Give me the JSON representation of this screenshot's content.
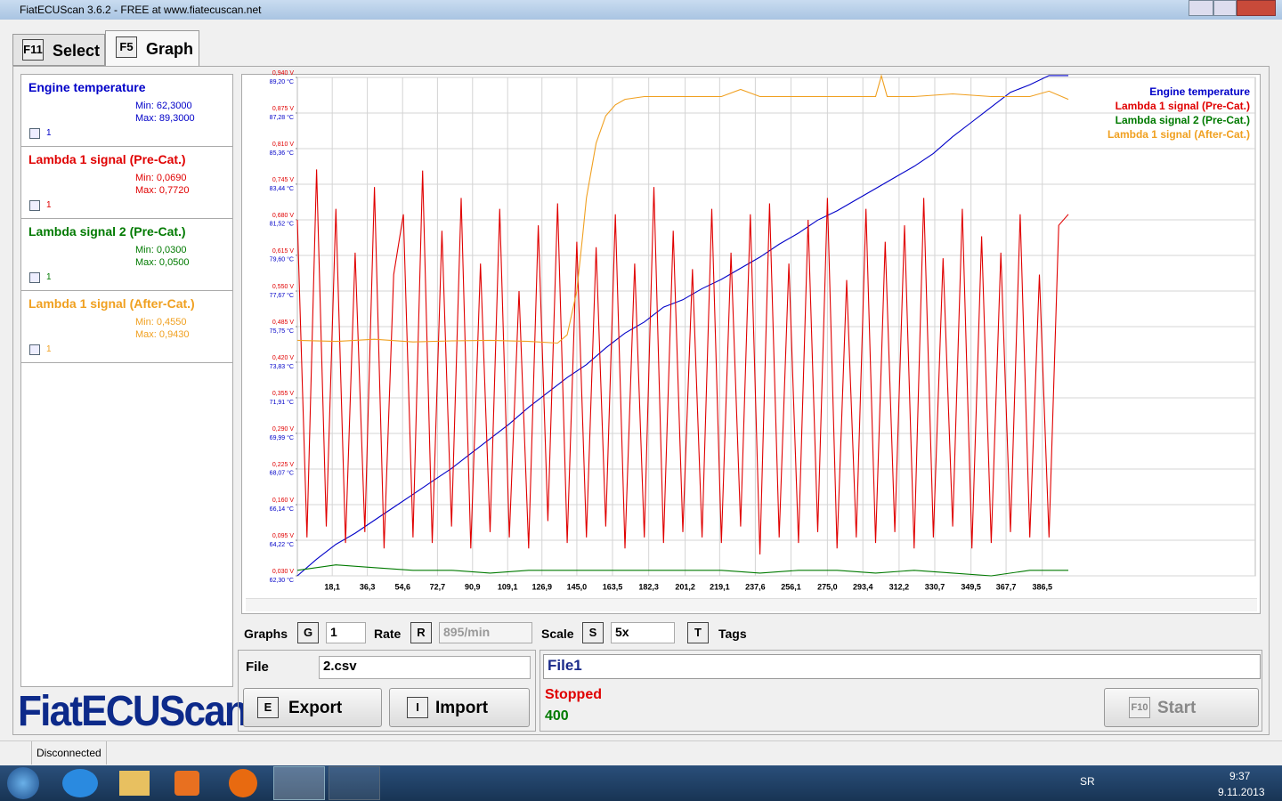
{
  "window": {
    "title": "FiatECUScan 3.6.2 - FREE at www.fiatecuscan.net"
  },
  "tabs": [
    {
      "key": "F11",
      "label": "Select"
    },
    {
      "key": "F5",
      "label": "Graph"
    }
  ],
  "left_panel": [
    {
      "name": "Engine temperature",
      "min": "Min: 62,3000",
      "max": "Max: 89,3000",
      "check": "1",
      "color": "#0000c8"
    },
    {
      "name": "Lambda 1 signal (Pre-Cat.)",
      "min": "Min: 0,0690",
      "max": "Max: 0,7720",
      "check": "1",
      "color": "#e00000"
    },
    {
      "name": "Lambda signal 2 (Pre-Cat.)",
      "min": "Min: 0,0300",
      "max": "Max: 0,0500",
      "check": "1",
      "color": "#007a00"
    },
    {
      "name": "Lambda 1 signal (After-Cat.)",
      "min": "Min: 0,4550",
      "max": "Max: 0,9430",
      "check": "1",
      "color": "#f0a020"
    }
  ],
  "chart_data": {
    "type": "line",
    "grid": true,
    "legend": "top-right",
    "xlim": [
      0,
      497
    ],
    "ylim": [
      0.03,
      0.94
    ],
    "y2lim": [
      62.3,
      89.2
    ],
    "xticks": [
      {
        "value": 18.1,
        "label": "18,1"
      },
      {
        "value": 36.3,
        "label": "36,3"
      },
      {
        "value": 54.6,
        "label": "54,6"
      },
      {
        "value": 72.7,
        "label": "72,7"
      },
      {
        "value": 90.9,
        "label": "90,9"
      },
      {
        "value": 109.1,
        "label": "109,1"
      },
      {
        "value": 126.9,
        "label": "126,9"
      },
      {
        "value": 145.0,
        "label": "145,0"
      },
      {
        "value": 163.5,
        "label": "163,5"
      },
      {
        "value": 182.3,
        "label": "182,3"
      },
      {
        "value": 201.2,
        "label": "201,2"
      },
      {
        "value": 219.1,
        "label": "219,1"
      },
      {
        "value": 237.6,
        "label": "237,6"
      },
      {
        "value": 256.1,
        "label": "256,1"
      },
      {
        "value": 275.0,
        "label": "275,0"
      },
      {
        "value": 293.4,
        "label": "293,4"
      },
      {
        "value": 312.2,
        "label": "312,2"
      },
      {
        "value": 330.7,
        "label": "330,7"
      },
      {
        "value": 349.5,
        "label": "349,5"
      },
      {
        "value": 367.7,
        "label": "367,7"
      },
      {
        "value": 386.5,
        "label": "386,5"
      }
    ],
    "yticks": [
      {
        "value": 0.03,
        "label": "0,030 V"
      },
      {
        "value": 0.095,
        "label": "0,095 V"
      },
      {
        "value": 0.16,
        "label": "0,160 V"
      },
      {
        "value": 0.225,
        "label": "0,225 V"
      },
      {
        "value": 0.29,
        "label": "0,290 V"
      },
      {
        "value": 0.355,
        "label": "0,355 V"
      },
      {
        "value": 0.42,
        "label": "0,420 V"
      },
      {
        "value": 0.485,
        "label": "0,485 V"
      },
      {
        "value": 0.55,
        "label": "0,550 V"
      },
      {
        "value": 0.615,
        "label": "0,615 V"
      },
      {
        "value": 0.68,
        "label": "0,680 V"
      },
      {
        "value": 0.745,
        "label": "0,745 V"
      },
      {
        "value": 0.81,
        "label": "0,810 V"
      },
      {
        "value": 0.875,
        "label": "0,875 V"
      },
      {
        "value": 0.94,
        "label": "0,940 V"
      }
    ],
    "y2ticks": [
      {
        "value": 62.3,
        "label": "62,30 °C"
      },
      {
        "value": 64.22,
        "label": "64,22 °C"
      },
      {
        "value": 66.14,
        "label": "66,14 °C"
      },
      {
        "value": 68.07,
        "label": "68,07 °C"
      },
      {
        "value": 69.99,
        "label": "69,99 °C"
      },
      {
        "value": 71.91,
        "label": "71,91 °C"
      },
      {
        "value": 73.83,
        "label": "73,83 °C"
      },
      {
        "value": 75.75,
        "label": "75,75 °C"
      },
      {
        "value": 77.67,
        "label": "77,67 °C"
      },
      {
        "value": 79.6,
        "label": "79,60 °C"
      },
      {
        "value": 81.52,
        "label": "81,52 °C"
      },
      {
        "value": 83.44,
        "label": "83,44 °C"
      },
      {
        "value": 85.36,
        "label": "85,36 °C"
      },
      {
        "value": 87.28,
        "label": "87,28 °C"
      },
      {
        "value": 89.2,
        "label": "89,20 °C"
      }
    ],
    "series": [
      {
        "name": "Engine temperature",
        "color": "#0000c8",
        "axis": "y2",
        "x": [
          0,
          10,
          20,
          30,
          40,
          50,
          60,
          70,
          80,
          90,
          100,
          110,
          120,
          130,
          140,
          150,
          160,
          170,
          180,
          190,
          200,
          210,
          220,
          230,
          240,
          250,
          260,
          270,
          280,
          290,
          300,
          310,
          320,
          330,
          340,
          350,
          360,
          370,
          380,
          390,
          400
        ],
        "values": [
          62.3,
          63.2,
          64.0,
          64.6,
          65.3,
          66.0,
          66.7,
          67.4,
          68.1,
          68.9,
          69.7,
          70.5,
          71.4,
          72.2,
          73.0,
          73.7,
          74.6,
          75.4,
          76.0,
          76.8,
          77.2,
          77.8,
          78.3,
          78.9,
          79.5,
          80.2,
          80.8,
          81.5,
          82.0,
          82.6,
          83.2,
          83.8,
          84.4,
          85.1,
          86.0,
          86.8,
          87.6,
          88.4,
          88.8,
          89.3,
          89.3
        ]
      },
      {
        "name": "Lambda 1 signal (Pre-Cat.)",
        "color": "#e00000",
        "x": [
          0,
          5,
          10,
          15,
          20,
          25,
          30,
          35,
          40,
          45,
          50,
          55,
          60,
          65,
          70,
          75,
          80,
          85,
          90,
          95,
          100,
          105,
          110,
          115,
          120,
          125,
          130,
          135,
          140,
          145,
          150,
          155,
          160,
          165,
          170,
          175,
          180,
          185,
          190,
          195,
          200,
          205,
          210,
          215,
          220,
          225,
          230,
          235,
          240,
          245,
          250,
          255,
          260,
          265,
          270,
          275,
          280,
          285,
          290,
          295,
          300,
          305,
          310,
          315,
          320,
          325,
          330,
          335,
          340,
          345,
          350,
          355,
          360,
          365,
          370,
          375,
          380,
          385,
          390,
          395,
          400
        ],
        "values": [
          0.68,
          0.1,
          0.772,
          0.12,
          0.7,
          0.09,
          0.62,
          0.11,
          0.74,
          0.08,
          0.58,
          0.69,
          0.1,
          0.77,
          0.09,
          0.66,
          0.12,
          0.72,
          0.08,
          0.6,
          0.11,
          0.7,
          0.1,
          0.55,
          0.08,
          0.67,
          0.13,
          0.71,
          0.09,
          0.64,
          0.1,
          0.63,
          0.12,
          0.69,
          0.08,
          0.6,
          0.1,
          0.74,
          0.09,
          0.66,
          0.11,
          0.59,
          0.1,
          0.7,
          0.09,
          0.62,
          0.12,
          0.69,
          0.069,
          0.71,
          0.1,
          0.6,
          0.09,
          0.68,
          0.11,
          0.72,
          0.08,
          0.57,
          0.1,
          0.7,
          0.09,
          0.64,
          0.11,
          0.67,
          0.08,
          0.72,
          0.1,
          0.61,
          0.12,
          0.7,
          0.08,
          0.65,
          0.09,
          0.62,
          0.11,
          0.69,
          0.1,
          0.58,
          0.1,
          0.67,
          0.69
        ]
      },
      {
        "name": "Lambda signal 2 (Pre-Cat.)",
        "color": "#007a00",
        "x": [
          0,
          20,
          40,
          60,
          80,
          100,
          120,
          140,
          160,
          180,
          200,
          220,
          240,
          260,
          280,
          300,
          320,
          340,
          360,
          380,
          400
        ],
        "values": [
          0.04,
          0.05,
          0.045,
          0.04,
          0.04,
          0.035,
          0.04,
          0.04,
          0.04,
          0.04,
          0.04,
          0.04,
          0.035,
          0.04,
          0.04,
          0.035,
          0.04,
          0.035,
          0.03,
          0.04,
          0.04
        ]
      },
      {
        "name": "Lambda 1 signal (After-Cat.)",
        "color": "#f0a020",
        "x": [
          0,
          20,
          40,
          60,
          80,
          100,
          120,
          135,
          140,
          145,
          148,
          150,
          155,
          160,
          165,
          170,
          180,
          200,
          220,
          230,
          240,
          260,
          280,
          300,
          303,
          306,
          320,
          340,
          360,
          380,
          390,
          400
        ],
        "values": [
          0.46,
          0.458,
          0.462,
          0.457,
          0.459,
          0.46,
          0.458,
          0.455,
          0.47,
          0.55,
          0.65,
          0.72,
          0.82,
          0.87,
          0.89,
          0.9,
          0.905,
          0.905,
          0.905,
          0.918,
          0.905,
          0.905,
          0.905,
          0.905,
          0.943,
          0.905,
          0.905,
          0.91,
          0.905,
          0.905,
          0.915,
          0.9
        ]
      }
    ]
  },
  "controls": {
    "graphs_label": "Graphs",
    "graphs_key": "G",
    "graphs_value": "1",
    "rate_label": "Rate",
    "rate_key": "R",
    "rate_value": "895/min",
    "scale_label": "Scale",
    "scale_key": "S",
    "scale_value": "5x",
    "tags_key": "T",
    "tags_label": "Tags"
  },
  "file_box": {
    "label": "File",
    "value": "2.csv",
    "export_key": "E",
    "export": "Export",
    "import_key": "I",
    "import": "Import"
  },
  "status_box": {
    "file": "File1",
    "state": "Stopped",
    "count": "400",
    "start_key": "F10",
    "start": "Start"
  },
  "logo": "FiatECUScan",
  "status_bar": "Disconnected",
  "taskbar": {
    "lang": "SR",
    "time": "9:37",
    "date": "9.11.2013"
  }
}
